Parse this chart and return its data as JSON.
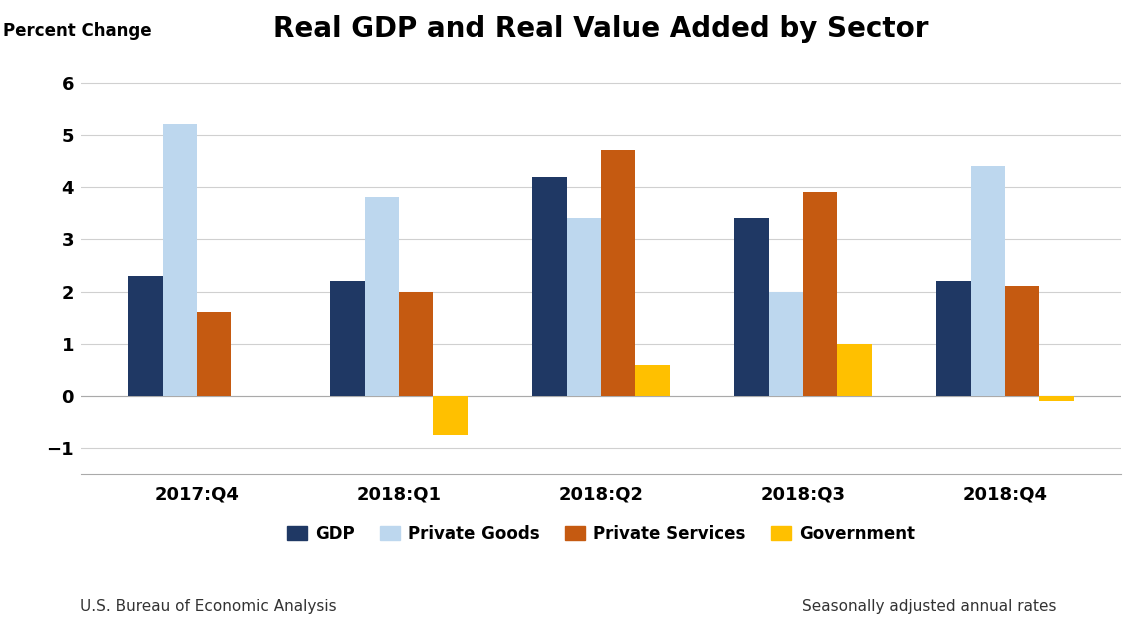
{
  "title": "Real GDP and Real Value Added by Sector",
  "ylabel": "Percent Change",
  "categories": [
    "2017:Q4",
    "2018:Q1",
    "2018:Q2",
    "2018:Q3",
    "2018:Q4"
  ],
  "series": {
    "GDP": [
      2.3,
      2.2,
      4.2,
      3.4,
      2.2
    ],
    "Private Goods": [
      5.2,
      3.8,
      3.4,
      2.0,
      4.4
    ],
    "Private Services": [
      1.6,
      2.0,
      4.7,
      3.9,
      2.1
    ],
    "Government": [
      0.0,
      -0.75,
      0.6,
      1.0,
      -0.1
    ]
  },
  "colors": {
    "GDP": "#1f3864",
    "Private Goods": "#bdd7ee",
    "Private Services": "#c55a11",
    "Government": "#ffc000"
  },
  "ylim": [
    -1.5,
    6.5
  ],
  "yticks": [
    -1,
    0,
    1,
    2,
    3,
    4,
    5,
    6
  ],
  "footer_left": "U.S. Bureau of Economic Analysis",
  "footer_right": "Seasonally adjusted annual rates",
  "background_color": "#ffffff",
  "title_fontsize": 20,
  "label_fontsize": 12,
  "tick_fontsize": 13,
  "legend_fontsize": 12,
  "footer_fontsize": 11,
  "bar_width": 0.17
}
